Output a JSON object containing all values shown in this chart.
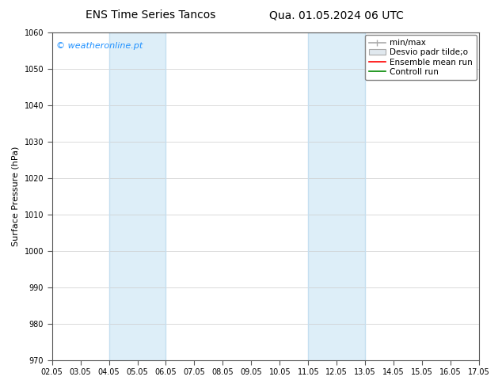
{
  "title_left": "ENS Time Series Tancos",
  "title_right": "Qua. 01.05.2024 06 UTC",
  "ylabel": "Surface Pressure (hPa)",
  "ylim": [
    970,
    1060
  ],
  "yticks": [
    970,
    980,
    990,
    1000,
    1010,
    1020,
    1030,
    1040,
    1050,
    1060
  ],
  "xtick_labels": [
    "02.05",
    "03.05",
    "04.05",
    "05.05",
    "06.05",
    "07.05",
    "08.05",
    "09.05",
    "10.05",
    "11.05",
    "12.05",
    "13.05",
    "14.05",
    "15.05",
    "16.05",
    "17.05"
  ],
  "shaded_regions": [
    {
      "start": 2,
      "end": 4
    },
    {
      "start": 9,
      "end": 11
    }
  ],
  "shade_color": "#ddeef8",
  "shade_edge_color": "#c5dff0",
  "legend_labels": [
    "min/max",
    "Desvio padr tilde;o",
    "Ensemble mean run",
    "Controll run"
  ],
  "legend_colors_line": [
    "#aaaaaa",
    "#cccccc",
    "#ff0000",
    "#008800"
  ],
  "watermark_text": "© weatheronline.pt",
  "watermark_color": "#1E90FF",
  "background_color": "#ffffff",
  "plot_bg_color": "#ffffff",
  "grid_color": "#cccccc",
  "spine_color": "#555555",
  "title_fontsize": 10,
  "tick_fontsize": 7,
  "ylabel_fontsize": 8,
  "legend_fontsize": 7.5,
  "watermark_fontsize": 8
}
